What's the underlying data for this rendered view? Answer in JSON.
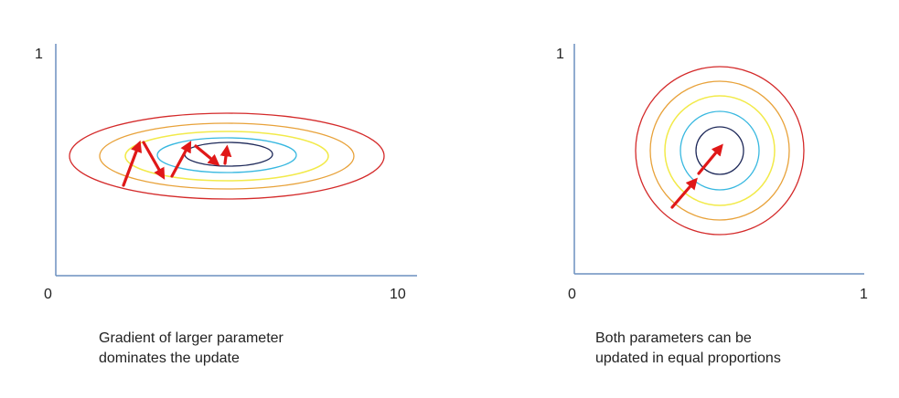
{
  "left_panel": {
    "y_tick_top": "1",
    "x_tick_left": "0",
    "x_tick_right": "10",
    "caption": {
      "line1": "Gradient of larger parameter",
      "line2": "dominates the update"
    }
  },
  "right_panel": {
    "y_tick_top": "1",
    "x_tick_left": "0",
    "x_tick_right": "1",
    "caption": {
      "line1": "Both parameters can be",
      "line2": "updated in equal proportions"
    }
  },
  "colors": {
    "axis": "#6b8fbf",
    "contour_outer": "#d42a2a",
    "contour_orange": "#e8a23a",
    "contour_yellow": "#f2ea4a",
    "contour_cyan": "#38b8e0",
    "contour_inner": "#1f2a5a",
    "arrow": "#e01818"
  }
}
